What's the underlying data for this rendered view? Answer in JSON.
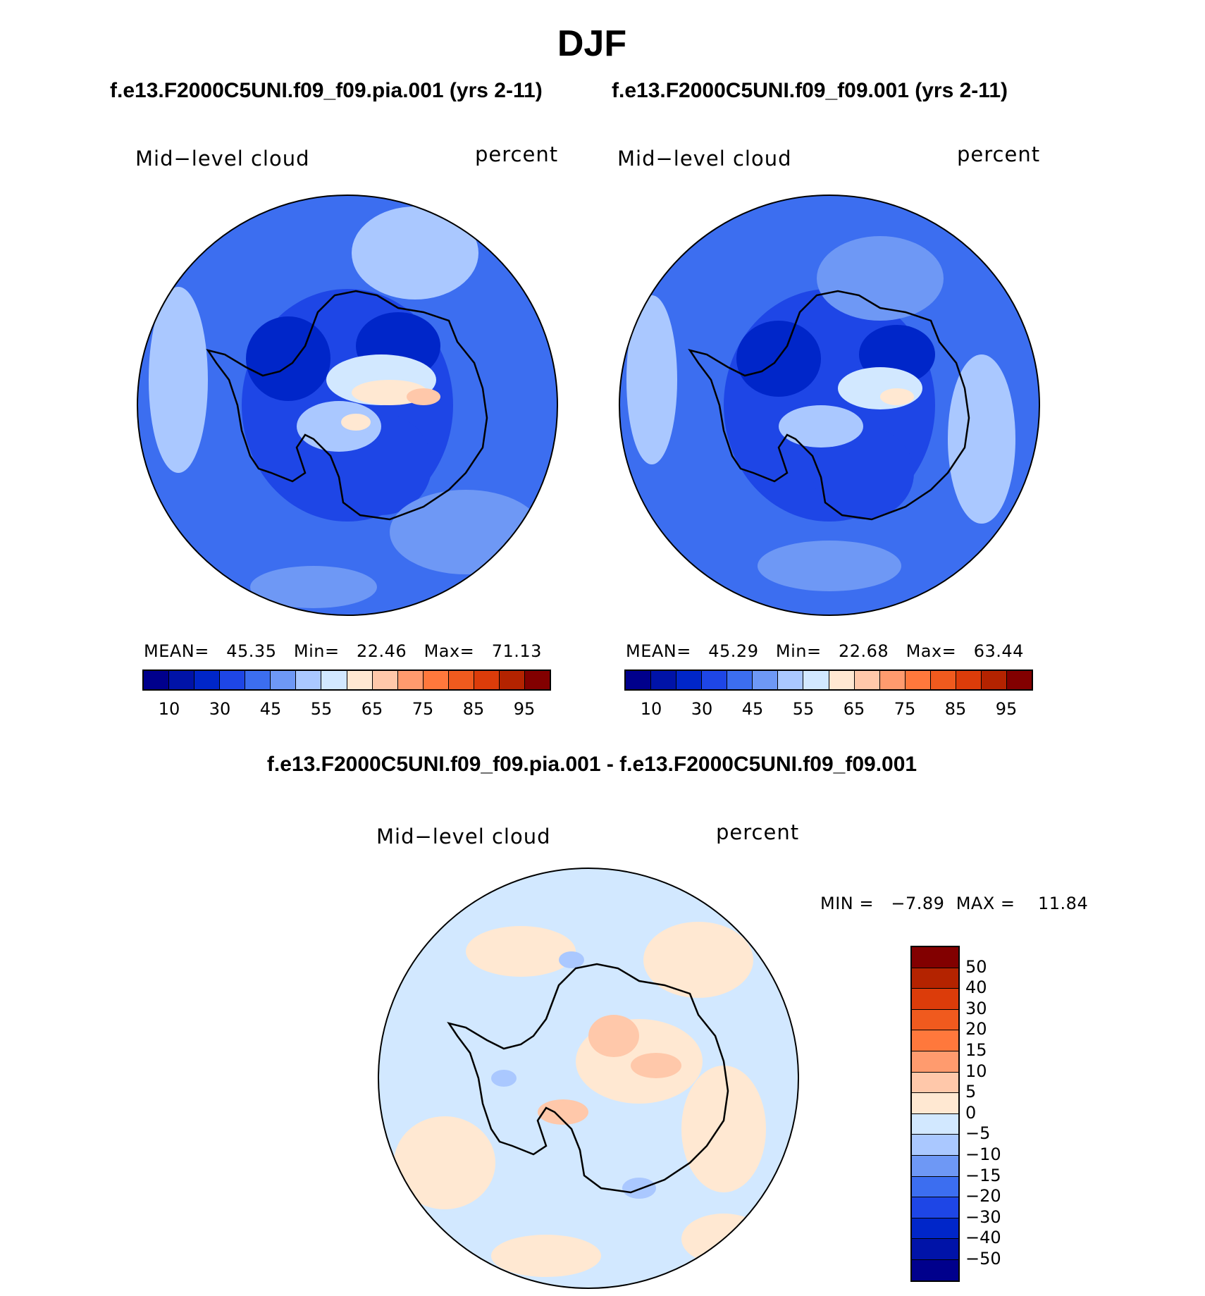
{
  "figure": {
    "season_title": "DJF",
    "test_case_title": "f.e13.F2000C5UNI.f09_f09.pia.001 (yrs 2-11)",
    "control_case_title": "f.e13.F2000C5UNI.f09_f09.001 (yrs 2-11)",
    "difference_title": "f.e13.F2000C5UNI.f09_f09.pia.001 - f.e13.F2000C5UNI.f09_f09.001"
  },
  "panels": {
    "test": {
      "variable": "Mid−level cloud",
      "units": "percent",
      "mean_label": "MEAN=",
      "mean_value": "45.35",
      "min_label": "Min=",
      "min_value": "22.46",
      "max_label": "Max=",
      "max_value": "71.13",
      "fills": [
        {
          "center": [
            0.5,
            0.5
          ],
          "size": [
            0.5,
            0.55
          ],
          "color_index": 3
        },
        {
          "center": [
            0.36,
            0.39
          ],
          "size": [
            0.2,
            0.2
          ],
          "color_index": 2
        },
        {
          "center": [
            0.62,
            0.36
          ],
          "size": [
            0.2,
            0.16
          ],
          "color_index": 2
        },
        {
          "center": [
            0.58,
            0.64
          ],
          "size": [
            0.24,
            0.24
          ],
          "color_index": 3
        },
        {
          "center": [
            0.66,
            0.14
          ],
          "size": [
            0.3,
            0.22
          ],
          "color_index": 6
        },
        {
          "center": [
            0.1,
            0.44
          ],
          "size": [
            0.14,
            0.44
          ],
          "color_index": 6
        },
        {
          "center": [
            0.78,
            0.8
          ],
          "size": [
            0.36,
            0.2
          ],
          "color_index": 5
        },
        {
          "center": [
            0.42,
            0.93
          ],
          "size": [
            0.3,
            0.1
          ],
          "color_index": 5
        },
        {
          "center": [
            0.58,
            0.44
          ],
          "size": [
            0.26,
            0.12
          ],
          "color_index": 7
        },
        {
          "center": [
            0.6,
            0.47
          ],
          "size": [
            0.18,
            0.06
          ],
          "color_index": 8
        },
        {
          "center": [
            0.68,
            0.48
          ],
          "size": [
            0.08,
            0.04
          ],
          "color_index": 9
        },
        {
          "center": [
            0.48,
            0.55
          ],
          "size": [
            0.2,
            0.12
          ],
          "color_index": 6
        },
        {
          "center": [
            0.52,
            0.54
          ],
          "size": [
            0.07,
            0.04
          ],
          "color_index": 8
        }
      ]
    },
    "control": {
      "variable": "Mid−level cloud",
      "units": "percent",
      "mean_label": "MEAN=",
      "mean_value": "45.29",
      "min_label": "Min=",
      "min_value": "22.68",
      "max_label": "Max=",
      "max_value": "63.44",
      "fills": [
        {
          "center": [
            0.5,
            0.5
          ],
          "size": [
            0.5,
            0.55
          ],
          "color_index": 3
        },
        {
          "center": [
            0.38,
            0.39
          ],
          "size": [
            0.2,
            0.18
          ],
          "color_index": 2
        },
        {
          "center": [
            0.66,
            0.38
          ],
          "size": [
            0.18,
            0.14
          ],
          "color_index": 2
        },
        {
          "center": [
            0.58,
            0.66
          ],
          "size": [
            0.24,
            0.22
          ],
          "color_index": 3
        },
        {
          "center": [
            0.62,
            0.2
          ],
          "size": [
            0.3,
            0.2
          ],
          "color_index": 5
        },
        {
          "center": [
            0.08,
            0.44
          ],
          "size": [
            0.12,
            0.4
          ],
          "color_index": 6
        },
        {
          "center": [
            0.86,
            0.58
          ],
          "size": [
            0.16,
            0.4
          ],
          "color_index": 6
        },
        {
          "center": [
            0.5,
            0.88
          ],
          "size": [
            0.34,
            0.12
          ],
          "color_index": 5
        },
        {
          "center": [
            0.62,
            0.46
          ],
          "size": [
            0.2,
            0.1
          ],
          "color_index": 7
        },
        {
          "center": [
            0.66,
            0.48
          ],
          "size": [
            0.08,
            0.04
          ],
          "color_index": 8
        },
        {
          "center": [
            0.48,
            0.55
          ],
          "size": [
            0.2,
            0.1
          ],
          "color_index": 6
        }
      ]
    },
    "difference": {
      "variable": "Mid−level cloud",
      "units": "percent",
      "min_label": "MIN =",
      "min_value": "−7.89",
      "max_label": "MAX =",
      "max_value": "11.84",
      "fills": [
        {
          "center": [
            0.34,
            0.2
          ],
          "size": [
            0.26,
            0.12
          ],
          "color_index": 8
        },
        {
          "center": [
            0.76,
            0.22
          ],
          "size": [
            0.26,
            0.18
          ],
          "color_index": 8
        },
        {
          "center": [
            0.82,
            0.62
          ],
          "size": [
            0.2,
            0.3
          ],
          "color_index": 8
        },
        {
          "center": [
            0.62,
            0.46
          ],
          "size": [
            0.3,
            0.2
          ],
          "color_index": 8
        },
        {
          "center": [
            0.56,
            0.4
          ],
          "size": [
            0.12,
            0.1
          ],
          "color_index": 9
        },
        {
          "center": [
            0.66,
            0.47
          ],
          "size": [
            0.12,
            0.06
          ],
          "color_index": 9
        },
        {
          "center": [
            0.44,
            0.58
          ],
          "size": [
            0.12,
            0.06
          ],
          "color_index": 9
        },
        {
          "center": [
            0.16,
            0.7
          ],
          "size": [
            0.24,
            0.22
          ],
          "color_index": 8
        },
        {
          "center": [
            0.4,
            0.92
          ],
          "size": [
            0.26,
            0.1
          ],
          "color_index": 8
        },
        {
          "center": [
            0.82,
            0.88
          ],
          "size": [
            0.2,
            0.12
          ],
          "color_index": 8
        },
        {
          "center": [
            0.46,
            0.22
          ],
          "size": [
            0.06,
            0.04
          ],
          "color_index": 6
        },
        {
          "center": [
            0.62,
            0.76
          ],
          "size": [
            0.08,
            0.05
          ],
          "color_index": 6
        },
        {
          "center": [
            0.3,
            0.5
          ],
          "size": [
            0.06,
            0.04
          ],
          "color_index": 6
        }
      ]
    }
  },
  "colorbars": {
    "absolute": {
      "colors": [
        "#00008c",
        "#0013a8",
        "#0026c9",
        "#1e46e6",
        "#3c6ef0",
        "#6e98f5",
        "#aac8ff",
        "#d2e8ff",
        "#ffe8d2",
        "#ffc8aa",
        "#ff9b6e",
        "#ff783c",
        "#f05a1e",
        "#dc3c0a",
        "#b42300",
        "#820000"
      ],
      "ticks": [
        "10",
        "30",
        "45",
        "55",
        "65",
        "75",
        "85",
        "95"
      ],
      "tick_boundary_index": [
        1,
        3,
        5,
        7,
        9,
        11,
        13,
        15
      ]
    },
    "difference": {
      "colors_top_to_bottom": [
        "#820000",
        "#b42300",
        "#dc3c0a",
        "#f05a1e",
        "#ff783c",
        "#ff9b6e",
        "#ffc8aa",
        "#ffe8d2",
        "#d2e8ff",
        "#aac8ff",
        "#6e98f5",
        "#3c6ef0",
        "#1e46e6",
        "#0026c9",
        "#0013a8",
        "#00008c"
      ],
      "ticks_top_to_bottom": [
        "50",
        "40",
        "30",
        "20",
        "15",
        "10",
        "5",
        "0",
        "−5",
        "−10",
        "−15",
        "−20",
        "−30",
        "−40",
        "−50"
      ]
    }
  },
  "map_colors": {
    "diff_background": "#d2e8ff",
    "coastline": "#000000",
    "circle_border": "#000000"
  }
}
